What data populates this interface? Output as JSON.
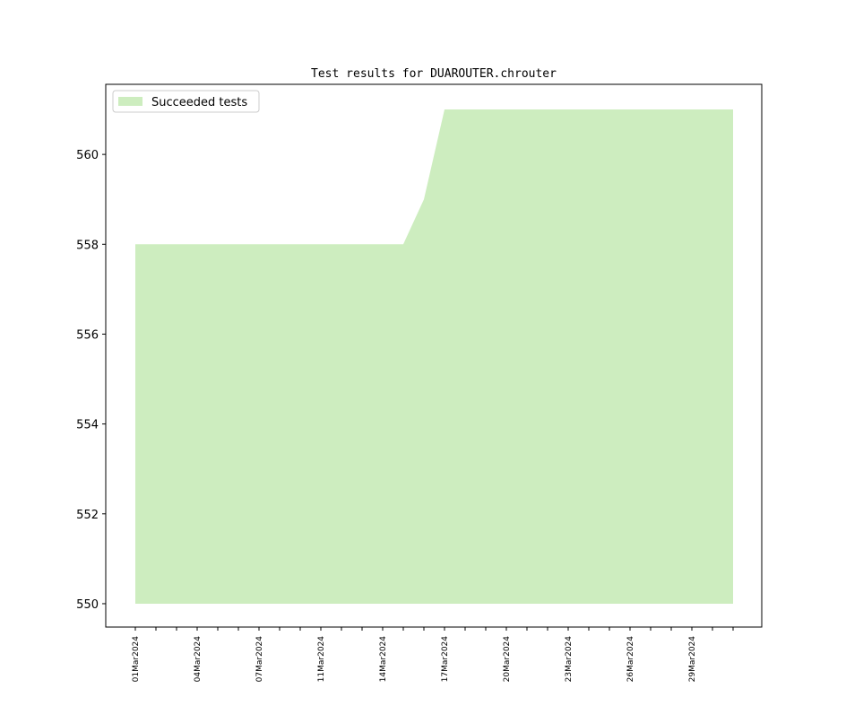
{
  "chart_data": {
    "type": "area",
    "title": "Test results for DUAROUTER.chrouter",
    "categories": [
      "01Mar2024",
      null,
      null,
      "04Mar2024",
      null,
      null,
      "07Mar2024",
      null,
      null,
      "11Mar2024",
      null,
      null,
      "14Mar2024",
      null,
      null,
      "17Mar2024",
      null,
      null,
      "20Mar2024",
      null,
      null,
      "23Mar2024",
      null,
      null,
      "26Mar2024",
      null,
      null,
      "29Mar2024",
      null,
      null
    ],
    "series": [
      {
        "name": "Succeeded tests",
        "color": "#cdedbf",
        "values": [
          558,
          558,
          558,
          558,
          558,
          558,
          558,
          558,
          558,
          558,
          558,
          558,
          558,
          558,
          559,
          561,
          561,
          561,
          561,
          561,
          561,
          561,
          561,
          561,
          561,
          561,
          561,
          561,
          561,
          561
        ]
      }
    ],
    "fill_base": 550,
    "ylim": [
      549.48,
      561.56
    ],
    "yticks": [
      550,
      552,
      554,
      556,
      558,
      560
    ],
    "legend": "upper left"
  }
}
